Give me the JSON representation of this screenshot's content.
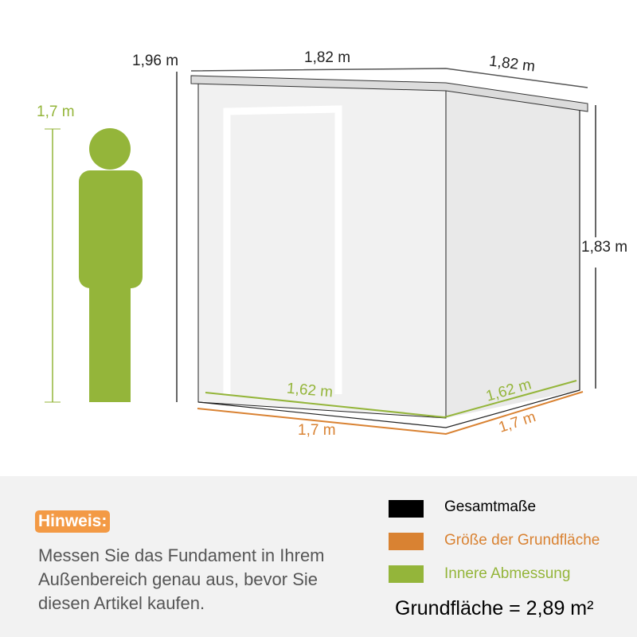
{
  "colors": {
    "overall": "#000000",
    "base": "#d98232",
    "inner": "#94b53a",
    "note_badge": "#f39a45"
  },
  "person": {
    "height_label": "1,7 m"
  },
  "dimensions": {
    "total_height": "1,96 m",
    "roof_width": "1,82 m",
    "roof_depth": "1,82 m",
    "wall_height": "1,83 m",
    "inner_width": "1,62 m",
    "inner_depth": "1,62 m",
    "base_width": "1,7 m",
    "base_depth": "1,7 m"
  },
  "note": {
    "title": "Hinweis:",
    "text": "Messen Sie das Fundament in Ihrem Außenbereich genau aus, bevor Sie diesen Artikel kaufen."
  },
  "legend": [
    {
      "label": "Gesamtmaße",
      "color": "#000000"
    },
    {
      "label": "Größe der Grundfläche",
      "color": "#d98232"
    },
    {
      "label": "Innere Abmessung",
      "color": "#94b53a"
    }
  ],
  "area": "Grundfläche  = 2,89 m²"
}
